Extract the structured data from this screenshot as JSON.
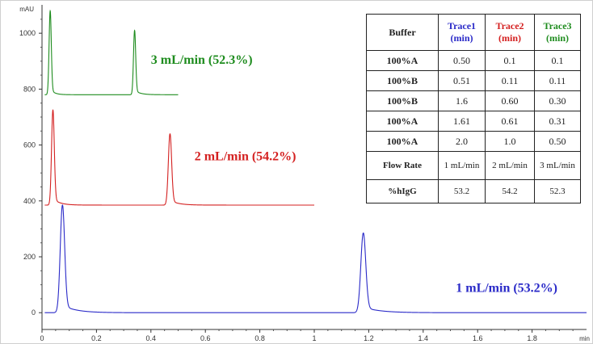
{
  "chart_data": {
    "type": "line",
    "title": "",
    "xlabel": "",
    "ylabel": "",
    "y_unit": "mAU",
    "x_unit": "min",
    "xlim": [
      0,
      2.0
    ],
    "ylim": [
      -60,
      1090
    ],
    "x_ticks": [
      "0",
      "0.2",
      "0.4",
      "0.6",
      "0.8",
      "1",
      "1.2",
      "1.4",
      "1.6",
      "1.8"
    ],
    "y_ticks": [
      "0",
      "200",
      "400",
      "600",
      "800",
      "1000"
    ],
    "grid": false,
    "series": [
      {
        "name": "Trace1",
        "color": "#2a2ac8",
        "label": "1 mL/min  (53.2%)",
        "baseline": 0,
        "end_x": 2.0,
        "peaks": [
          {
            "x": 0.075,
            "height": 385,
            "width": 0.008,
            "tail": 0.05
          },
          {
            "x": 1.18,
            "height": 285,
            "width": 0.009,
            "tail": 0.06
          }
        ]
      },
      {
        "name": "Trace2",
        "color": "#d42020",
        "label": "2 mL/min  (54.2%)",
        "baseline": 385,
        "end_x": 1.0,
        "peaks": [
          {
            "x": 0.04,
            "height": 340,
            "width": 0.005,
            "tail": 0.025
          },
          {
            "x": 0.47,
            "height": 255,
            "width": 0.006,
            "tail": 0.03
          }
        ]
      },
      {
        "name": "Trace3",
        "color": "#1e8c1e",
        "label": "3 mL/min  (52.3%)",
        "baseline": 780,
        "end_x": 0.5,
        "peaks": [
          {
            "x": 0.03,
            "height": 300,
            "width": 0.004,
            "tail": 0.015
          },
          {
            "x": 0.34,
            "height": 230,
            "width": 0.004,
            "tail": 0.02
          }
        ]
      }
    ]
  },
  "table": {
    "headers": [
      {
        "text": "Buffer",
        "color": "#222222"
      },
      {
        "text": "Trace1 (min)",
        "color": "#2a2ac8"
      },
      {
        "text": "Trace2 (min)",
        "color": "#d42020"
      },
      {
        "text": "Trace3 (min)",
        "color": "#1e8c1e"
      }
    ],
    "rows": [
      [
        "100%A",
        "0.50",
        "0.1",
        "0.1"
      ],
      [
        "100%B",
        "0.51",
        "0.11",
        "0.11"
      ],
      [
        "100%B",
        "1.6",
        "0.60",
        "0.30"
      ],
      [
        "100%A",
        "1.61",
        "0.61",
        "0.31"
      ],
      [
        "100%A",
        "2.0",
        "1.0",
        "0.50"
      ]
    ],
    "flow_row": [
      "Flow Rate",
      "1 mL/min",
      "2 mL/min",
      "3 mL/min"
    ],
    "igg_row": [
      "%hIgG",
      "53.2",
      "54.2",
      "52.3"
    ]
  }
}
